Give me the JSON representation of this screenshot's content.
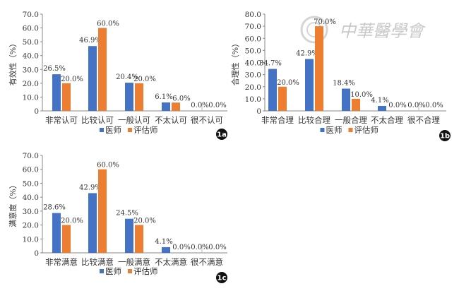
{
  "watermark": {
    "text": "中華醫學會"
  },
  "chart_data": [
    {
      "type": "bar",
      "panel": "1a",
      "ylabel": "有效性（%）",
      "ylim": [
        0,
        70
      ],
      "yticks": [
        "0",
        "10.0",
        "20.0",
        "30.0",
        "40.0",
        "50.0",
        "60.0",
        "70.0"
      ],
      "categories": [
        "非常认可",
        "比较认可",
        "一般认可",
        "不太认可",
        "很不认可"
      ],
      "series": [
        {
          "name": "医师",
          "color": "#4472C4",
          "values": [
            26.5,
            46.9,
            20.4,
            6.1,
            0.0
          ],
          "labels": [
            "26.5%",
            "46.9%",
            "20.4%",
            "6.1%",
            "0.0%"
          ]
        },
        {
          "name": "评估师",
          "color": "#ED7D31",
          "values": [
            20.0,
            60.0,
            20.0,
            6.0,
            0.0
          ],
          "labels": [
            "20.0%",
            "60.0%",
            "20.0%",
            "6.0%",
            "0.0%"
          ]
        }
      ],
      "legend": "bottom"
    },
    {
      "type": "bar",
      "panel": "1b",
      "ylabel": "合理性（%）",
      "ylim": [
        0,
        80
      ],
      "yticks": [
        "0",
        "10.0",
        "20.0",
        "30.0",
        "40.0",
        "50.0",
        "60.0",
        "70.0",
        "80.0"
      ],
      "categories": [
        "非常合理",
        "比较合理",
        "一般合理",
        "不太合理",
        "很不合理"
      ],
      "series": [
        {
          "name": "医师",
          "color": "#4472C4",
          "values": [
            34.7,
            42.9,
            18.4,
            4.1,
            0.0
          ],
          "labels": [
            "34.7%",
            "42.9%",
            "18.4%",
            "4.1%",
            "0.0%"
          ]
        },
        {
          "name": "评估师",
          "color": "#ED7D31",
          "values": [
            20.0,
            70.0,
            10.0,
            0.0,
            0.0
          ],
          "labels": [
            "20.0%",
            "70.0%",
            "10.0%",
            "0.0%",
            "0.0%"
          ]
        }
      ],
      "legend": "bottom"
    },
    {
      "type": "bar",
      "panel": "1c",
      "ylabel": "满意度（%）",
      "ylim": [
        0,
        70
      ],
      "yticks": [
        "0",
        "10.0",
        "20.0",
        "30.0",
        "40.0",
        "50.0",
        "60.0",
        "70.0"
      ],
      "categories": [
        "非常满意",
        "比较满意",
        "一般满意",
        "不太满意",
        "很不满意"
      ],
      "series": [
        {
          "name": "医师",
          "color": "#4472C4",
          "values": [
            28.6,
            42.9,
            24.5,
            4.1,
            0.0
          ],
          "labels": [
            "28.6%",
            "42.9%",
            "24.5%",
            "4.1%",
            "0.0%"
          ]
        },
        {
          "name": "评估师",
          "color": "#ED7D31",
          "values": [
            20.0,
            60.0,
            20.0,
            0.0,
            0.0
          ],
          "labels": [
            "20.0%",
            "60.0%",
            "20.0%",
            "0.0%",
            "0.0%"
          ]
        }
      ],
      "legend": "bottom"
    }
  ]
}
